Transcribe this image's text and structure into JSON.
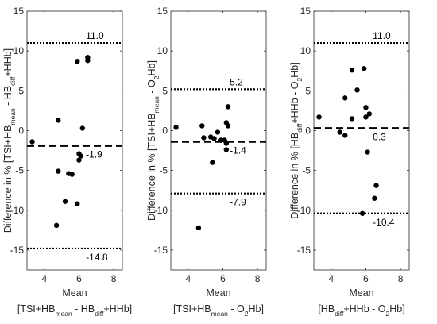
{
  "chart_data": [
    {
      "type": "scatter",
      "xlabel": "Mean",
      "ylabel_parts": [
        {
          "t": "Difference in % [TSI+HB"
        },
        {
          "t": "mean",
          "sub": true
        },
        {
          "t": " - HB"
        },
        {
          "t": "diff",
          "sub": true
        },
        {
          "t": "+HHb]"
        }
      ],
      "xlabel2_parts": [
        {
          "t": "[TSI+HB"
        },
        {
          "t": "mean",
          "sub": true
        },
        {
          "t": " - HB"
        },
        {
          "t": "diff",
          "sub": true
        },
        {
          "t": "+HHb]"
        }
      ],
      "xlim": [
        3,
        8.5
      ],
      "ylim": [
        -17.5,
        15
      ],
      "xticks": [
        4,
        6,
        8
      ],
      "yticks": [
        -15,
        -10,
        -5,
        0,
        5,
        10,
        15
      ],
      "mean_line": -1.9,
      "upper_loa": 11.0,
      "lower_loa": -14.8,
      "mean_label": "-1.9",
      "upper_label": "11.0",
      "lower_label": "-14.8",
      "points": [
        {
          "x": 3.3,
          "y": -1.4
        },
        {
          "x": 4.7,
          "y": -11.9
        },
        {
          "x": 4.8,
          "y": -5.1
        },
        {
          "x": 4.8,
          "y": 1.3
        },
        {
          "x": 5.2,
          "y": -8.9
        },
        {
          "x": 5.4,
          "y": -5.4
        },
        {
          "x": 5.6,
          "y": -5.5
        },
        {
          "x": 5.9,
          "y": -9.2
        },
        {
          "x": 5.9,
          "y": 8.7
        },
        {
          "x": 6.0,
          "y": -2.9
        },
        {
          "x": 6.0,
          "y": -3.7
        },
        {
          "x": 6.1,
          "y": -3.2
        },
        {
          "x": 6.2,
          "y": 0.3
        },
        {
          "x": 6.5,
          "y": 8.8
        },
        {
          "x": 6.5,
          "y": 9.2
        }
      ]
    },
    {
      "type": "scatter",
      "xlabel": "Mean",
      "ylabel_parts": [
        {
          "t": "Difference in % [TSI+HB"
        },
        {
          "t": "mean",
          "sub": true
        },
        {
          "t": " - O"
        },
        {
          "t": "2",
          "sub": true
        },
        {
          "t": "Hb]"
        }
      ],
      "xlabel2_parts": [
        {
          "t": "[TSI+HB"
        },
        {
          "t": "mean",
          "sub": true
        },
        {
          "t": " - O"
        },
        {
          "t": "2",
          "sub": true
        },
        {
          "t": "Hb]"
        }
      ],
      "xlim": [
        3,
        8.5
      ],
      "ylim": [
        -17.5,
        15
      ],
      "xticks": [
        4,
        6,
        8
      ],
      "yticks": [
        -15,
        -10,
        -5,
        0,
        5,
        10,
        15
      ],
      "mean_line": -1.4,
      "upper_loa": 5.2,
      "lower_loa": -7.9,
      "mean_label": "-1.4",
      "upper_label": "5.2",
      "lower_label": "-7.9",
      "points": [
        {
          "x": 3.3,
          "y": 0.4
        },
        {
          "x": 4.6,
          "y": -12.2
        },
        {
          "x": 4.8,
          "y": 0.6
        },
        {
          "x": 4.9,
          "y": -0.9
        },
        {
          "x": 5.3,
          "y": -0.8
        },
        {
          "x": 5.4,
          "y": -4.0
        },
        {
          "x": 5.5,
          "y": -1.0
        },
        {
          "x": 5.7,
          "y": -0.2
        },
        {
          "x": 5.9,
          "y": -1.2
        },
        {
          "x": 6.1,
          "y": -1.2
        },
        {
          "x": 6.2,
          "y": -2.4
        },
        {
          "x": 6.2,
          "y": -1.6
        },
        {
          "x": 6.2,
          "y": 1.0
        },
        {
          "x": 6.3,
          "y": 0.6
        },
        {
          "x": 6.3,
          "y": 3.0
        }
      ]
    },
    {
      "type": "scatter",
      "xlabel": "Mean",
      "ylabel_parts": [
        {
          "t": "Difference in % [HB"
        },
        {
          "t": "diff",
          "sub": true
        },
        {
          "t": "+HHb - O"
        },
        {
          "t": "2",
          "sub": true
        },
        {
          "t": "Hb]"
        }
      ],
      "xlabel2_parts": [
        {
          "t": "[HB"
        },
        {
          "t": "diff",
          "sub": true
        },
        {
          "t": "+HHb - O"
        },
        {
          "t": "2",
          "sub": true
        },
        {
          "t": "Hb]"
        }
      ],
      "xlim": [
        3,
        8.5
      ],
      "ylim": [
        -17.5,
        15
      ],
      "xticks": [
        4,
        6,
        8
      ],
      "yticks": [
        -15,
        -10,
        -5,
        0,
        5,
        10,
        15
      ],
      "mean_line": 0.3,
      "upper_loa": 11.0,
      "lower_loa": -10.4,
      "mean_label": "0.3",
      "upper_label": "11.0",
      "lower_label": "-10.4",
      "points": [
        {
          "x": 3.3,
          "y": 1.7
        },
        {
          "x": 4.5,
          "y": -0.2
        },
        {
          "x": 4.8,
          "y": -0.6
        },
        {
          "x": 4.8,
          "y": 4.1
        },
        {
          "x": 5.2,
          "y": 7.6
        },
        {
          "x": 5.2,
          "y": 1.5
        },
        {
          "x": 5.5,
          "y": 5.1
        },
        {
          "x": 5.8,
          "y": -10.4
        },
        {
          "x": 5.9,
          "y": 7.8
        },
        {
          "x": 6.0,
          "y": 1.7
        },
        {
          "x": 6.0,
          "y": 2.9
        },
        {
          "x": 6.1,
          "y": -2.7
        },
        {
          "x": 6.2,
          "y": 2.1
        },
        {
          "x": 6.5,
          "y": -8.5
        },
        {
          "x": 6.6,
          "y": -6.9
        }
      ]
    }
  ]
}
